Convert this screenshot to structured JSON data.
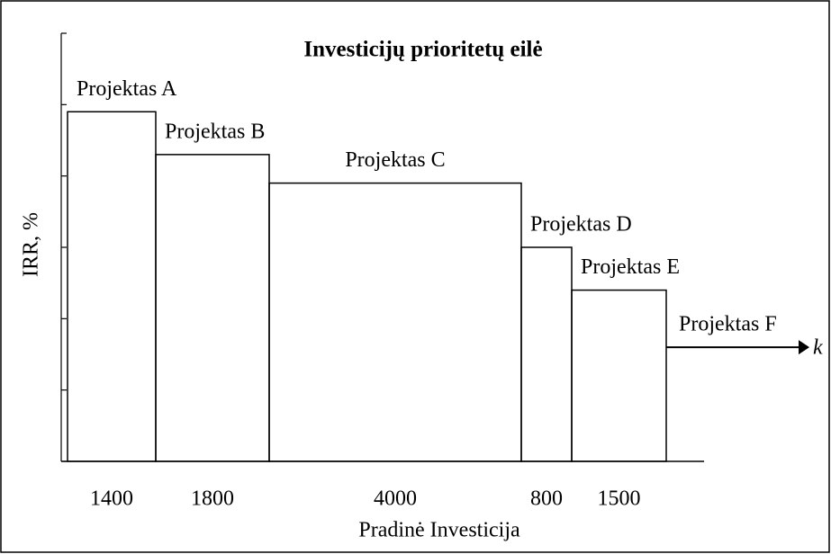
{
  "chart_data": {
    "type": "bar",
    "title": "Investicijų prioritetų eilė",
    "x_label": "Pradinė Investicija",
    "y_label": "IRR, %",
    "categories": [
      "Projektas A",
      "Projektas B",
      "Projektas C",
      "Projektas D",
      "Projektas E",
      "Projektas F"
    ],
    "values": [
      4.9,
      4.3,
      3.9,
      3.0,
      2.4,
      1.6
    ],
    "widths": [
      1400,
      1800,
      4000,
      800,
      1500,
      null
    ],
    "annotation": "k",
    "color": "#000000",
    "xlim": [
      0,
      11800
    ],
    "ylim": [
      0,
      6
    ],
    "yticks": [
      0,
      1,
      2,
      3,
      4,
      5,
      6
    ],
    "grid": false
  }
}
